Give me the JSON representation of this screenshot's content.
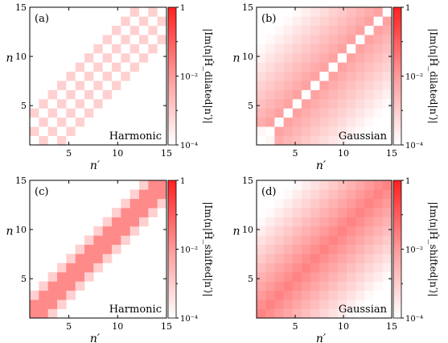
{
  "panels": [
    {
      "label": "(a)",
      "annotation": "Harmonic",
      "pattern": "dilated-harmonic",
      "cbar_label": "|Im⟨n|Ĥ_dilated|n′⟩|"
    },
    {
      "label": "(b)",
      "annotation": "Gaussian",
      "pattern": "dilated-gaussian",
      "cbar_label": "|Im⟨n|Ĥ_dilated|n′⟩|"
    },
    {
      "label": "(c)",
      "annotation": "Harmonic",
      "pattern": "shifted-harmonic",
      "cbar_label": "|Im⟨n|Ĥ_shifted|n′⟩|"
    },
    {
      "label": "(d)",
      "annotation": "Gaussian",
      "pattern": "shifted-gaussian",
      "cbar_label": "|Im⟨n|Ĥ_shifted|n′⟩|"
    }
  ],
  "chart_data": {
    "type": "heatmap",
    "x": {
      "label": "n′",
      "range": [
        1,
        15
      ],
      "ticks": [
        5,
        10,
        15
      ]
    },
    "y": {
      "label": "n",
      "range": [
        1,
        15
      ],
      "ticks": [
        5,
        10,
        15
      ]
    },
    "colorbar": {
      "scale": "log",
      "range": [
        0.0001,
        1
      ],
      "ticks": [
        "10⁻⁴",
        "10⁻²",
        "1"
      ],
      "colors": [
        "#ffffff",
        "#ff2a2a"
      ]
    }
  },
  "colors": {
    "high": "#ff2a2a",
    "pattern_mid": "#ff8c8c",
    "pattern_light": "#ffd0d0",
    "axis": "#000000"
  }
}
